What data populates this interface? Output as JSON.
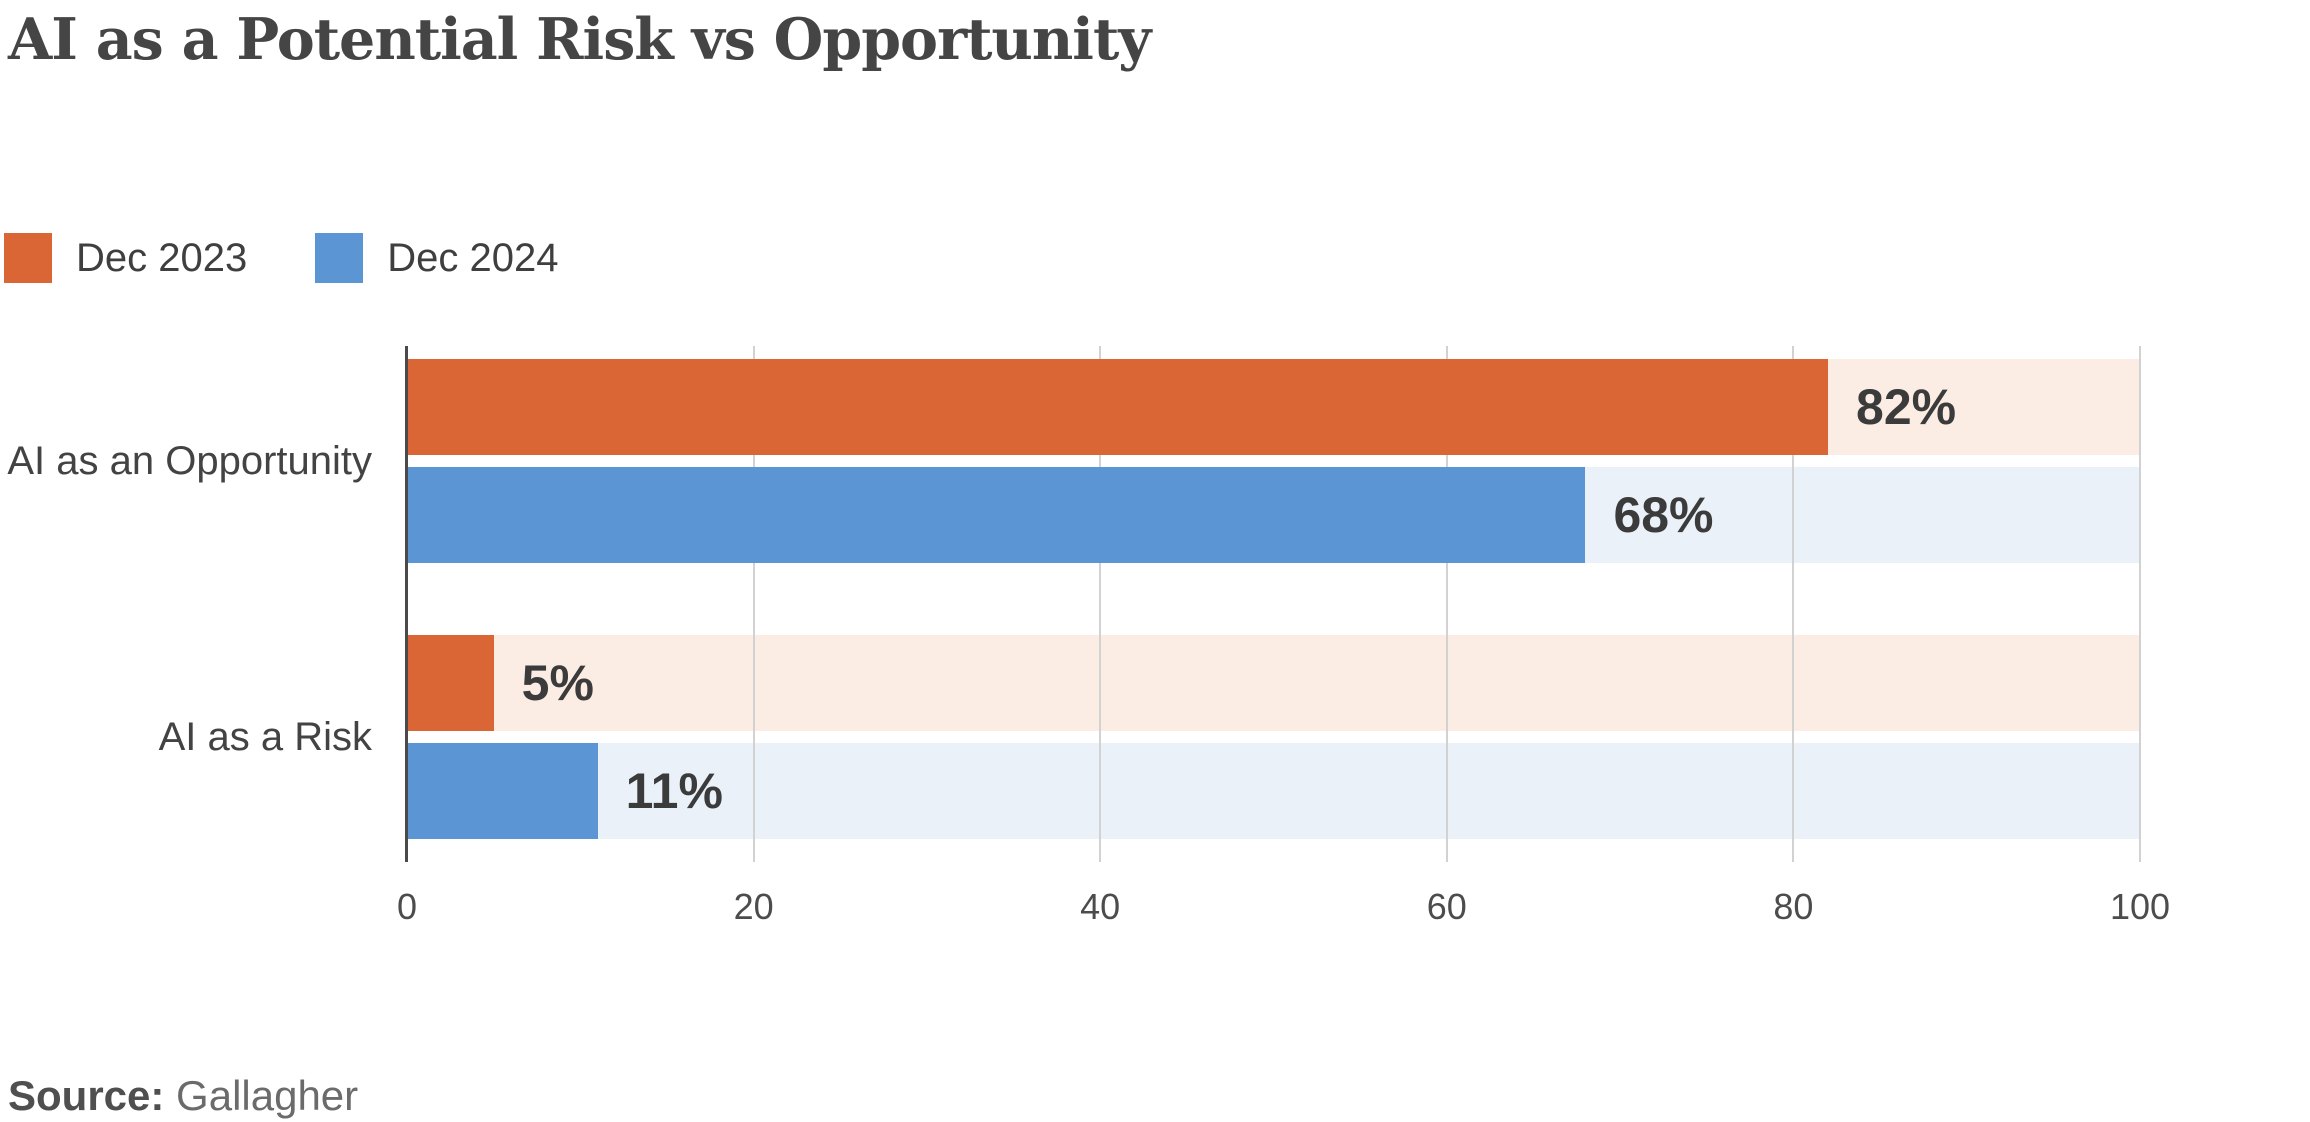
{
  "title": "AI as a Potential Risk vs Opportunity",
  "source": {
    "label": "Source:",
    "text": "Gallagher"
  },
  "colors": {
    "dec_2023": "#db6635",
    "dec_2024": "#5c95d4",
    "dec_2023_track": "#fbece4",
    "dec_2024_track": "#eaf1f9",
    "gridline": "#d2d2d2",
    "axis_line": "#4a4a4a",
    "text_dark": "#3b3b3b"
  },
  "chart_data": {
    "type": "bar",
    "orientation": "horizontal",
    "title": "AI as a Potential Risk vs Opportunity",
    "categories": [
      "AI as an Opportunity",
      "AI as a Risk"
    ],
    "series": [
      {
        "name": "Dec 2023",
        "values": [
          82,
          5
        ],
        "labels": [
          "82%",
          "5%"
        ],
        "color": "#db6635",
        "track_color": "#fbece4"
      },
      {
        "name": "Dec 2024",
        "values": [
          68,
          11
        ],
        "labels": [
          "68%",
          "11%"
        ],
        "color": "#5c95d4",
        "track_color": "#eaf1f9"
      }
    ],
    "xlabel": "",
    "ylabel": "",
    "xlim": [
      0,
      100
    ],
    "x_ticks": [
      0,
      20,
      40,
      60,
      80,
      100
    ],
    "grid": true,
    "track_to_max": true,
    "legend_position": "top-left",
    "value_label_position": "outside-end"
  }
}
